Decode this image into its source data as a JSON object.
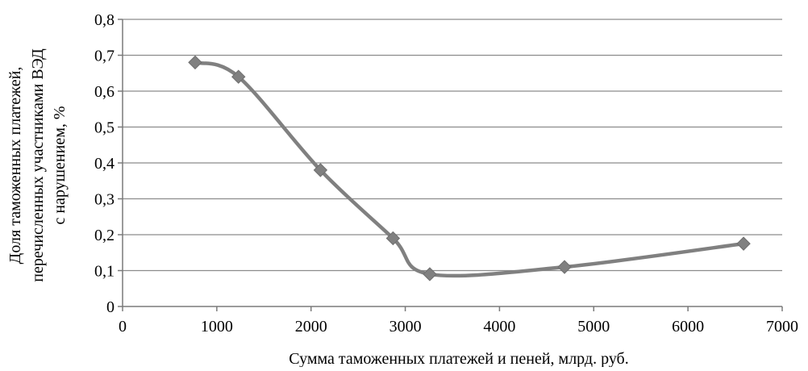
{
  "chart_data": {
    "type": "line",
    "title": "",
    "xlabel": "Сумма таможенных платежей и пеней, млрд. руб.",
    "ylabel_lines": [
      "Доля таможенных платежей,",
      "перечисленных участниками ВЭД",
      "с нарушением, %"
    ],
    "xlim": [
      0,
      7000
    ],
    "ylim": [
      0,
      0.8
    ],
    "x_ticks": [
      0,
      1000,
      2000,
      3000,
      4000,
      5000,
      6000,
      7000
    ],
    "x_tick_labels": [
      "0",
      "1000",
      "2000",
      "3000",
      "4000",
      "5000",
      "6000",
      "7000"
    ],
    "y_ticks": [
      0,
      0.1,
      0.2,
      0.3,
      0.4,
      0.5,
      0.6,
      0.7,
      0.8
    ],
    "y_tick_labels": [
      "0",
      "0,1",
      "0,2",
      "0,3",
      "0,4",
      "0,5",
      "0,6",
      "0,7",
      "0,8"
    ],
    "grid": "horizontal",
    "smooth": true,
    "series": [
      {
        "color": "#808080",
        "marker": "diamond",
        "points": [
          {
            "x": 770,
            "y": 0.68
          },
          {
            "x": 1230,
            "y": 0.64
          },
          {
            "x": 2100,
            "y": 0.38
          },
          {
            "x": 2870,
            "y": 0.19
          },
          {
            "x": 3260,
            "y": 0.09
          },
          {
            "x": 4690,
            "y": 0.11
          },
          {
            "x": 6590,
            "y": 0.175
          }
        ]
      }
    ]
  }
}
